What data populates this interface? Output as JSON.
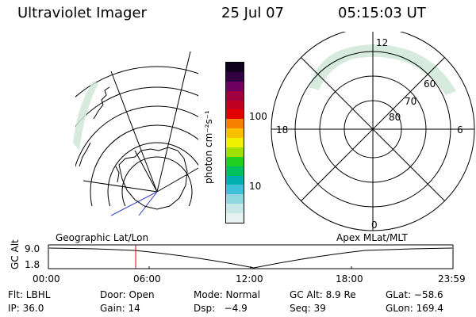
{
  "header": {
    "title": "Ultraviolet Imager",
    "date": "25 Jul 07",
    "time": "05:15:03 UT"
  },
  "colorbar": {
    "unit_label": "photon cm⁻²s⁻¹",
    "tick_100": "100",
    "tick_10": "10",
    "colors": [
      "#e6f2f2",
      "#c8e8e8",
      "#8fd6df",
      "#40c0d8",
      "#00b0b0",
      "#00c060",
      "#20d020",
      "#a0e000",
      "#f0f000",
      "#f8c000",
      "#f88000",
      "#e00000",
      "#c00020",
      "#a00040",
      "#700060",
      "#300040",
      "#100020"
    ]
  },
  "left_map": {
    "label": "Geographic Lat/Lon"
  },
  "right_map": {
    "label": "Apex MLat/MLT",
    "mlt_12": "12",
    "mlt_6": "6",
    "mlt_18": "18",
    "mlt_0": "0",
    "lat_60": "60",
    "lat_70": "70",
    "lat_80": "80"
  },
  "timeline": {
    "axis_label": "GC Alt",
    "y_top": "9.0",
    "y_bottom": "1.8",
    "x_ticks": [
      "00:00",
      "06:00",
      "12:00",
      "18:00",
      "23:59"
    ],
    "current_marker_time": "05:15"
  },
  "status": {
    "flt": "Flt: LBHL",
    "door": "Door: Open",
    "mode": "Mode: Normal",
    "gc_alt": "GC Alt: 8.9 Re",
    "glat": "GLat: −58.6",
    "ip": "IP: 36.0",
    "gain": "Gain: 14",
    "dsp": "Dsp:   −4.9",
    "seq": "Seq: 39",
    "glon": "GLon: 169.4"
  }
}
